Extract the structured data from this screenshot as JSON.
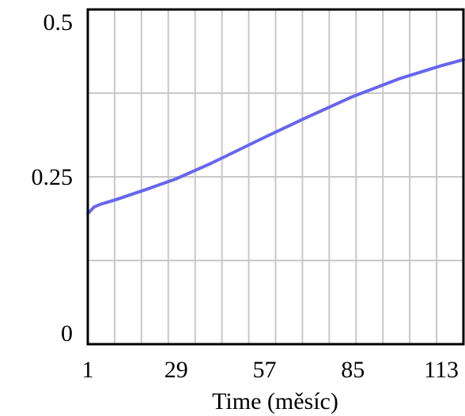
{
  "chart_data": {
    "type": "line",
    "title": "",
    "xlabel": "Time (měsíc)",
    "ylabel": "",
    "xlim": [
      1,
      120
    ],
    "ylim": [
      0,
      0.5
    ],
    "x_ticks": [
      1,
      29,
      57,
      85,
      113
    ],
    "x_tick_labels": [
      "1",
      "29",
      "57",
      "85",
      "113"
    ],
    "y_ticks": [
      0,
      0.25,
      0.5
    ],
    "y_tick_labels": [
      "0",
      "0.25",
      "0.5"
    ],
    "grid": true,
    "vertical_grid_count": 14,
    "horizontal_gridlines": [
      0.125,
      0.25,
      0.375
    ],
    "series": [
      {
        "color": "#6666ee",
        "x": [
          1,
          2,
          3,
          5,
          10,
          20,
          29,
          40,
          57,
          70,
          85,
          100,
          113,
          120
        ],
        "y": [
          0.195,
          0.2,
          0.205,
          0.209,
          0.216,
          0.232,
          0.247,
          0.27,
          0.309,
          0.338,
          0.37,
          0.397,
          0.416,
          0.425
        ]
      }
    ]
  }
}
